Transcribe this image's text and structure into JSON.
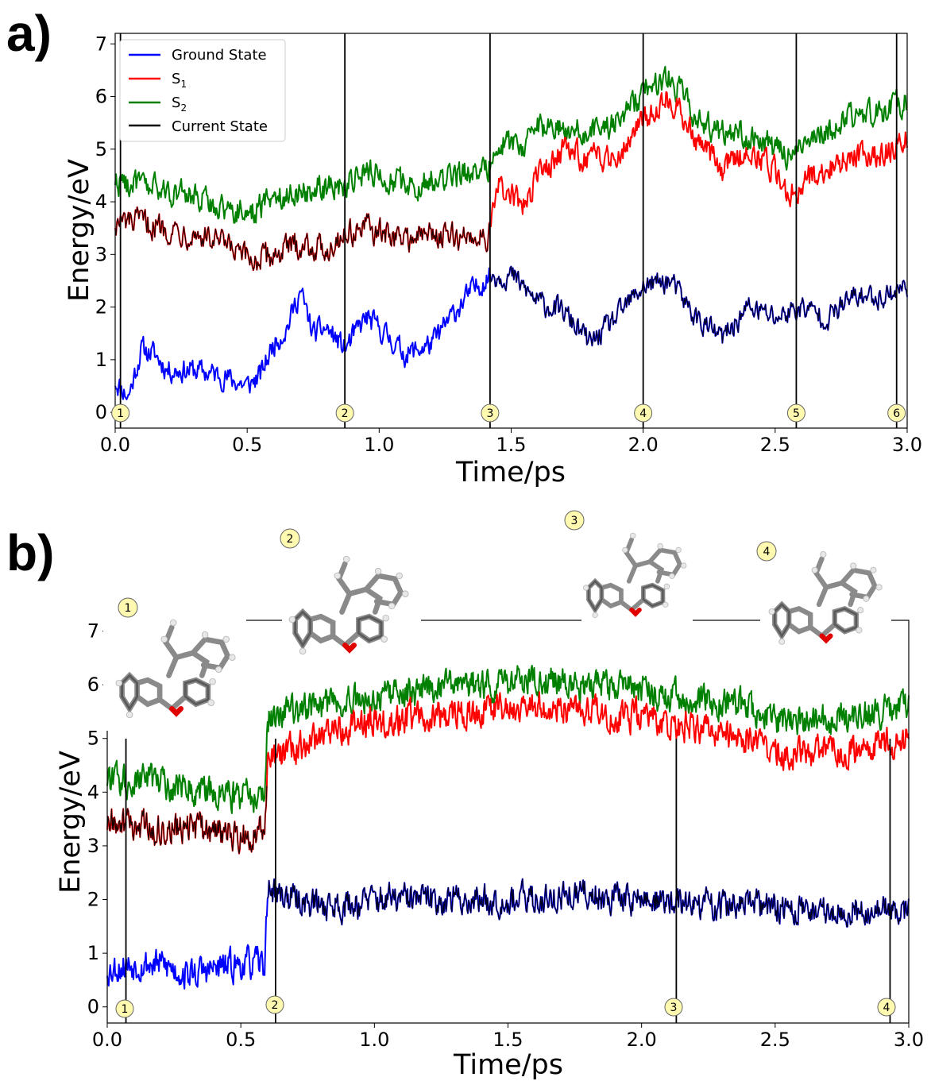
{
  "chart_data": [
    {
      "panel_label": "a)",
      "type": "line",
      "xlabel": "Time/ps",
      "ylabel": "Energy/eV",
      "xlim": [
        0,
        3.0
      ],
      "ylim": [
        -0.3,
        7.2
      ],
      "xticks": [
        "0.0",
        "0.5",
        "1.0",
        "1.5",
        "2.0",
        "2.5",
        "3.0"
      ],
      "yticks": [
        "0",
        "1",
        "2",
        "3",
        "4",
        "5",
        "6",
        "7"
      ],
      "legend": {
        "placement": "top-left",
        "entries": [
          {
            "label": "Ground State",
            "sub": "",
            "color": "#0000ff"
          },
          {
            "label": "S",
            "sub": "1",
            "color": "#ff0000"
          },
          {
            "label": "S",
            "sub": "2",
            "color": "#008000"
          },
          {
            "label": "Current State",
            "sub": "",
            "color": "#000000"
          }
        ]
      },
      "hop_switch_time": 1.42,
      "vlines": [
        0.02,
        0.87,
        1.42,
        2.0,
        2.58,
        2.96
      ],
      "markers": [
        {
          "label": "1",
          "t": 0.02
        },
        {
          "label": "2",
          "t": 0.87
        },
        {
          "label": "3",
          "t": 1.42
        },
        {
          "label": "4",
          "t": 2.0
        },
        {
          "label": "5",
          "t": 2.58
        },
        {
          "label": "6",
          "t": 2.96
        }
      ],
      "series": [
        {
          "name": "Ground State",
          "color": "#0000ff",
          "x": [
            0.0,
            0.05,
            0.1,
            0.15,
            0.2,
            0.3,
            0.4,
            0.5,
            0.55,
            0.6,
            0.65,
            0.7,
            0.75,
            0.8,
            0.87,
            0.95,
            1.0,
            1.1,
            1.2,
            1.3,
            1.35,
            1.42,
            1.5,
            1.6,
            1.7,
            1.8,
            1.9,
            2.0,
            2.1,
            2.2,
            2.3,
            2.4,
            2.5,
            2.6,
            2.7,
            2.8,
            2.9,
            3.0
          ],
          "y": [
            0.6,
            0.3,
            1.2,
            1.1,
            0.8,
            0.8,
            0.7,
            0.5,
            0.7,
            1.3,
            1.6,
            2.3,
            1.5,
            1.6,
            1.2,
            1.8,
            1.6,
            1.1,
            1.3,
            2.0,
            2.3,
            2.6,
            2.6,
            2.1,
            1.9,
            1.3,
            1.8,
            2.4,
            2.5,
            1.8,
            1.4,
            2.0,
            1.8,
            2.0,
            1.8,
            2.2,
            2.2,
            2.4
          ],
          "noise": 0.35
        },
        {
          "name": "S1",
          "color": "#ff0000",
          "x": [
            0.0,
            0.1,
            0.2,
            0.3,
            0.4,
            0.5,
            0.55,
            0.6,
            0.7,
            0.8,
            0.87,
            0.95,
            1.0,
            1.1,
            1.2,
            1.3,
            1.42,
            1.45,
            1.55,
            1.6,
            1.7,
            1.8,
            1.9,
            2.0,
            2.1,
            2.2,
            2.3,
            2.4,
            2.5,
            2.55,
            2.6,
            2.7,
            2.8,
            2.9,
            3.0
          ],
          "y": [
            3.6,
            3.6,
            3.5,
            3.4,
            3.2,
            2.9,
            2.9,
            3.0,
            3.2,
            3.1,
            3.4,
            3.5,
            3.4,
            3.3,
            3.4,
            3.3,
            3.4,
            4.3,
            3.9,
            4.5,
            5.0,
            4.8,
            4.9,
            5.6,
            6.0,
            5.2,
            4.6,
            5.0,
            4.6,
            4.1,
            4.4,
            4.6,
            4.9,
            4.9,
            5.2
          ],
          "noise": 0.4
        },
        {
          "name": "S2",
          "color": "#008000",
          "x": [
            0.0,
            0.1,
            0.2,
            0.3,
            0.4,
            0.5,
            0.55,
            0.6,
            0.7,
            0.8,
            0.87,
            0.95,
            1.0,
            1.1,
            1.2,
            1.3,
            1.42,
            1.45,
            1.55,
            1.6,
            1.7,
            1.8,
            1.9,
            2.0,
            2.1,
            2.2,
            2.3,
            2.4,
            2.5,
            2.55,
            2.6,
            2.7,
            2.8,
            2.9,
            3.0
          ],
          "y": [
            4.4,
            4.3,
            4.2,
            4.1,
            3.9,
            3.8,
            3.9,
            4.1,
            4.2,
            4.3,
            4.3,
            4.6,
            4.5,
            4.3,
            4.4,
            4.5,
            4.7,
            5.2,
            5.0,
            5.4,
            5.4,
            5.3,
            5.5,
            6.1,
            6.4,
            5.6,
            5.3,
            5.3,
            5.0,
            4.9,
            5.1,
            5.4,
            5.6,
            5.7,
            5.9
          ],
          "noise": 0.4
        }
      ]
    },
    {
      "panel_label": "b)",
      "type": "line",
      "xlabel": "Time/ps",
      "ylabel": "Energy/eV",
      "xlim": [
        0,
        3.0
      ],
      "ylim": [
        -0.3,
        7.2
      ],
      "xticks": [
        "0.0",
        "0.5",
        "1.0",
        "1.5",
        "2.0",
        "2.5",
        "3.0"
      ],
      "yticks": [
        "0",
        "1",
        "2",
        "3",
        "4",
        "5",
        "6",
        "7"
      ],
      "hop_switch_time": 0.6,
      "vlines": [
        0.07,
        0.63,
        2.13,
        2.93
      ],
      "markers": [
        {
          "label": "1",
          "t": 0.07
        },
        {
          "label": "2",
          "t": 0.63
        },
        {
          "label": "3",
          "t": 2.13
        },
        {
          "label": "4",
          "t": 2.93
        }
      ],
      "inset_labels": [
        {
          "label": "1"
        },
        {
          "label": "2"
        },
        {
          "label": "3"
        },
        {
          "label": "4"
        }
      ],
      "series": [
        {
          "name": "Ground State",
          "color": "#0000ff",
          "x": [
            0.0,
            0.1,
            0.2,
            0.3,
            0.4,
            0.5,
            0.59,
            0.6,
            0.7,
            0.8,
            0.9,
            1.0,
            1.2,
            1.4,
            1.6,
            1.8,
            2.0,
            2.2,
            2.4,
            2.6,
            2.8,
            3.0
          ],
          "y": [
            0.7,
            0.8,
            0.8,
            0.6,
            0.7,
            0.8,
            0.8,
            2.2,
            2.0,
            1.9,
            1.9,
            2.0,
            2.0,
            2.0,
            2.0,
            2.1,
            2.0,
            1.9,
            1.9,
            1.8,
            1.8,
            1.8
          ],
          "noise": 0.45
        },
        {
          "name": "S1",
          "color": "#ff0000",
          "x": [
            0.0,
            0.1,
            0.2,
            0.3,
            0.4,
            0.5,
            0.59,
            0.6,
            0.7,
            0.8,
            0.9,
            1.0,
            1.2,
            1.4,
            1.6,
            1.8,
            2.0,
            2.2,
            2.4,
            2.5,
            2.6,
            2.8,
            3.0
          ],
          "y": [
            3.4,
            3.4,
            3.3,
            3.3,
            3.3,
            3.2,
            3.3,
            4.6,
            4.8,
            5.0,
            5.2,
            5.3,
            5.4,
            5.5,
            5.6,
            5.5,
            5.4,
            5.2,
            5.0,
            4.8,
            4.7,
            4.8,
            5.0
          ],
          "noise": 0.45
        },
        {
          "name": "S2",
          "color": "#008000",
          "x": [
            0.0,
            0.1,
            0.2,
            0.3,
            0.4,
            0.5,
            0.59,
            0.6,
            0.7,
            0.8,
            0.9,
            1.0,
            1.2,
            1.4,
            1.6,
            1.8,
            2.0,
            2.2,
            2.4,
            2.5,
            2.6,
            2.8,
            3.0
          ],
          "y": [
            4.2,
            4.2,
            4.2,
            4.1,
            4.0,
            3.9,
            3.9,
            5.4,
            5.5,
            5.6,
            5.7,
            5.8,
            5.9,
            6.0,
            6.1,
            6.0,
            5.9,
            5.7,
            5.6,
            5.3,
            5.3,
            5.4,
            5.6
          ],
          "noise": 0.45
        }
      ]
    }
  ]
}
